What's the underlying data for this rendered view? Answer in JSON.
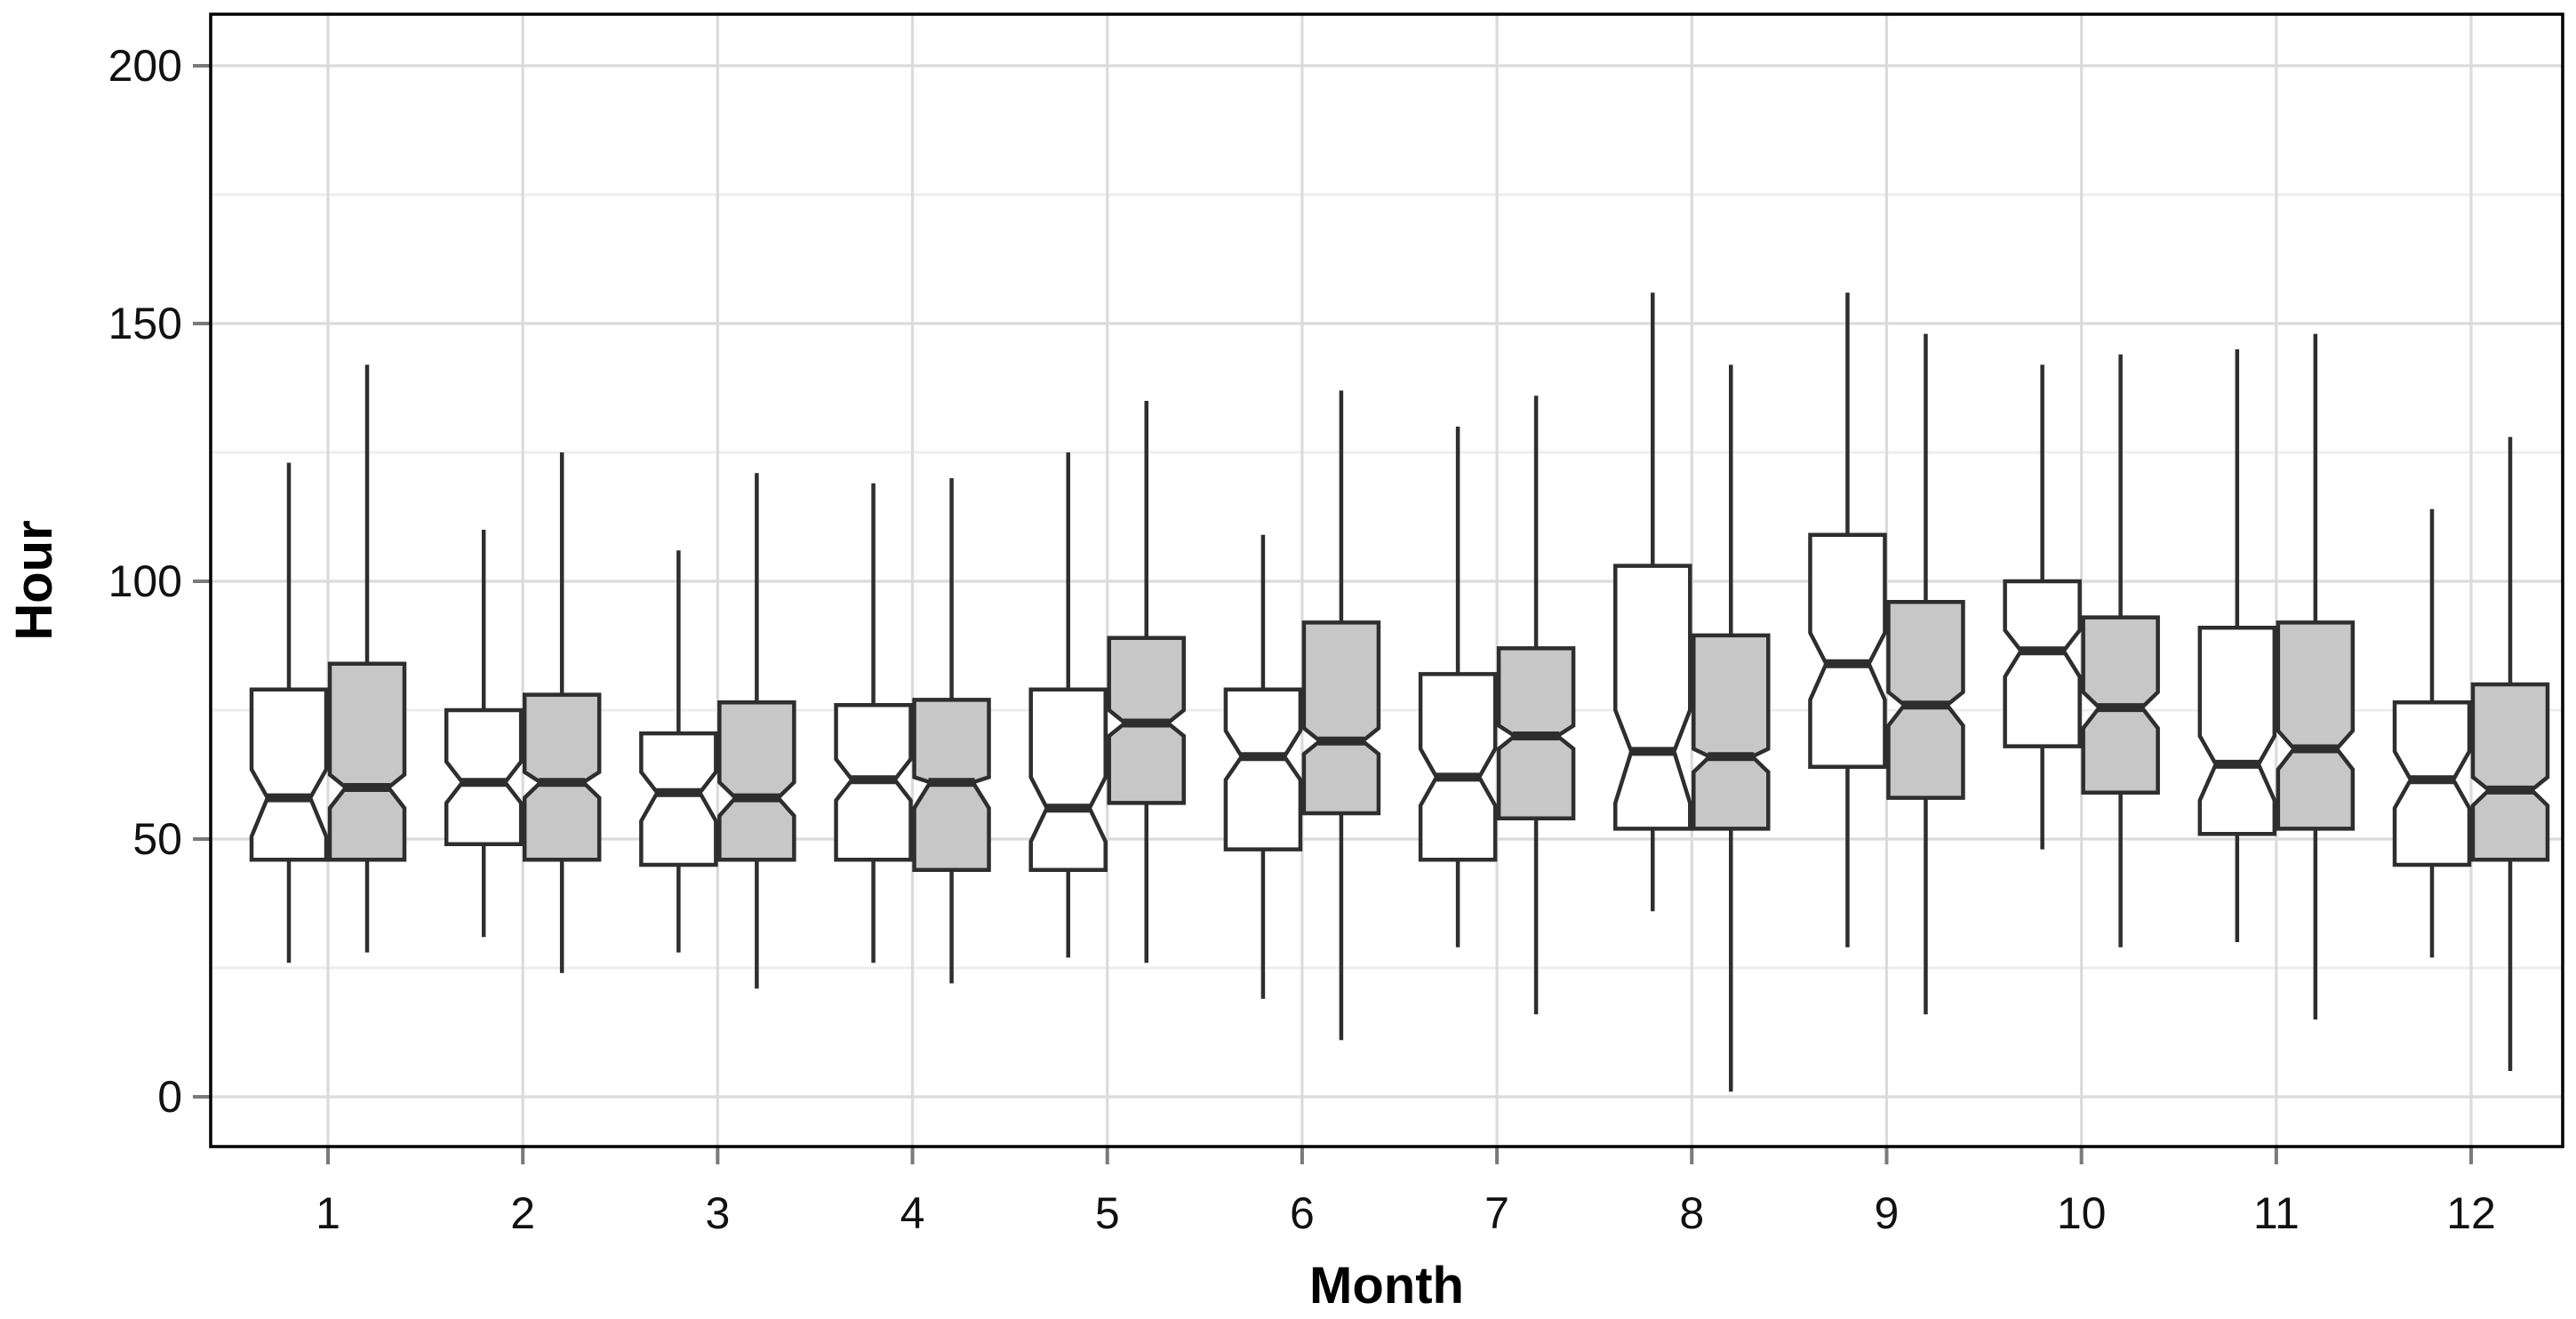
{
  "chart_data": {
    "type": "boxplot",
    "variant": "notched-grouped-boxplot",
    "title": "",
    "xlabel": "Month",
    "ylabel": "Hour",
    "x_categories": [
      "1",
      "2",
      "3",
      "4",
      "5",
      "6",
      "7",
      "8",
      "9",
      "10",
      "11",
      "12"
    ],
    "y_ticks": [
      0,
      50,
      100,
      150,
      200
    ],
    "y_minor_ticks": [
      25,
      75,
      125,
      175
    ],
    "ylim": [
      -10,
      210
    ],
    "grid": "on",
    "legend": "none",
    "style": {
      "panel_background": "#ffffff",
      "panel_border_color": "#000000",
      "box_line_color": "#2e2e2e",
      "white_series_fill": "#ffffff",
      "gray_series_fill": "#c7c7c7",
      "major_grid_color": "#dbdbdb",
      "minor_grid_color": "#ededed",
      "tick_mark_color": "#7a7a7a",
      "text_color": "#000000"
    },
    "series": [
      {
        "name": "white",
        "fill": "#ffffff",
        "boxes": [
          {
            "month": 1,
            "whislo": 26,
            "q1": 46,
            "med": 58,
            "q3": 79,
            "whishi": 123,
            "notch_lo": 50.5,
            "notch_hi": 63.5
          },
          {
            "month": 2,
            "whislo": 31,
            "q1": 49,
            "med": 61,
            "q3": 75,
            "whishi": 110,
            "notch_lo": 57,
            "notch_hi": 65
          },
          {
            "month": 3,
            "whislo": 28,
            "q1": 45,
            "med": 59,
            "q3": 70.5,
            "whishi": 106,
            "notch_lo": 53.5,
            "notch_hi": 63
          },
          {
            "month": 4,
            "whislo": 26,
            "q1": 46,
            "med": 61.5,
            "q3": 76,
            "whishi": 119,
            "notch_lo": 57.5,
            "notch_hi": 65.5
          },
          {
            "month": 5,
            "whislo": 27,
            "q1": 44,
            "med": 56,
            "q3": 79,
            "whishi": 125,
            "notch_lo": 49.5,
            "notch_hi": 62
          },
          {
            "month": 6,
            "whislo": 19,
            "q1": 48,
            "med": 66,
            "q3": 79,
            "whishi": 109,
            "notch_lo": 61.5,
            "notch_hi": 71
          },
          {
            "month": 7,
            "whislo": 29,
            "q1": 46,
            "med": 62,
            "q3": 82,
            "whishi": 130,
            "notch_lo": 56.5,
            "notch_hi": 67.5
          },
          {
            "month": 8,
            "whislo": 36,
            "q1": 52,
            "med": 67,
            "q3": 103,
            "whishi": 156,
            "notch_lo": 57,
            "notch_hi": 75
          },
          {
            "month": 9,
            "whislo": 29,
            "q1": 64,
            "med": 84,
            "q3": 109,
            "whishi": 156,
            "notch_lo": 77,
            "notch_hi": 90
          },
          {
            "month": 10,
            "whislo": 48,
            "q1": 68,
            "med": 86.5,
            "q3": 100,
            "whishi": 142,
            "notch_lo": 81.5,
            "notch_hi": 90.5
          },
          {
            "month": 11,
            "whislo": 30,
            "q1": 51,
            "med": 64.5,
            "q3": 91,
            "whishi": 145,
            "notch_lo": 57.5,
            "notch_hi": 70
          },
          {
            "month": 12,
            "whislo": 27,
            "q1": 45,
            "med": 61.5,
            "q3": 76.5,
            "whishi": 114,
            "notch_lo": 56,
            "notch_hi": 67
          }
        ]
      },
      {
        "name": "gray",
        "fill": "#c7c7c7",
        "boxes": [
          {
            "month": 1,
            "whislo": 28,
            "q1": 46,
            "med": 60,
            "q3": 84,
            "whishi": 142,
            "notch_lo": 56,
            "notch_hi": 62.5
          },
          {
            "month": 2,
            "whislo": 24,
            "q1": 46,
            "med": 61,
            "q3": 78,
            "whishi": 125,
            "notch_lo": 58,
            "notch_hi": 63
          },
          {
            "month": 3,
            "whislo": 21,
            "q1": 46,
            "med": 58,
            "q3": 76.5,
            "whishi": 121,
            "notch_lo": 54.5,
            "notch_hi": 61
          },
          {
            "month": 4,
            "whislo": 22,
            "q1": 44,
            "med": 61,
            "q3": 77,
            "whishi": 120,
            "notch_lo": 56,
            "notch_hi": 62
          },
          {
            "month": 5,
            "whislo": 26,
            "q1": 57,
            "med": 72.5,
            "q3": 89,
            "whishi": 135,
            "notch_lo": 70,
            "notch_hi": 75
          },
          {
            "month": 6,
            "whislo": 11,
            "q1": 55,
            "med": 69,
            "q3": 92,
            "whishi": 137,
            "notch_lo": 66.5,
            "notch_hi": 71.5
          },
          {
            "month": 7,
            "whislo": 16,
            "q1": 54,
            "med": 70,
            "q3": 87,
            "whishi": 136,
            "notch_lo": 67.5,
            "notch_hi": 72
          },
          {
            "month": 8,
            "whislo": 1,
            "q1": 52,
            "med": 66,
            "q3": 89.5,
            "whishi": 142,
            "notch_lo": 63,
            "notch_hi": 67.5
          },
          {
            "month": 9,
            "whislo": 16,
            "q1": 58,
            "med": 76,
            "q3": 96,
            "whishi": 148,
            "notch_lo": 72,
            "notch_hi": 78.5
          },
          {
            "month": 10,
            "whislo": 29,
            "q1": 59,
            "med": 75.5,
            "q3": 93,
            "whishi": 144,
            "notch_lo": 71.5,
            "notch_hi": 78.5
          },
          {
            "month": 11,
            "whislo": 15,
            "q1": 52,
            "med": 67.5,
            "q3": 92,
            "whishi": 148,
            "notch_lo": 63.5,
            "notch_hi": 71
          },
          {
            "month": 12,
            "whislo": 5,
            "q1": 46,
            "med": 59.5,
            "q3": 80,
            "whishi": 128,
            "notch_lo": 56.5,
            "notch_hi": 62
          }
        ]
      }
    ]
  }
}
